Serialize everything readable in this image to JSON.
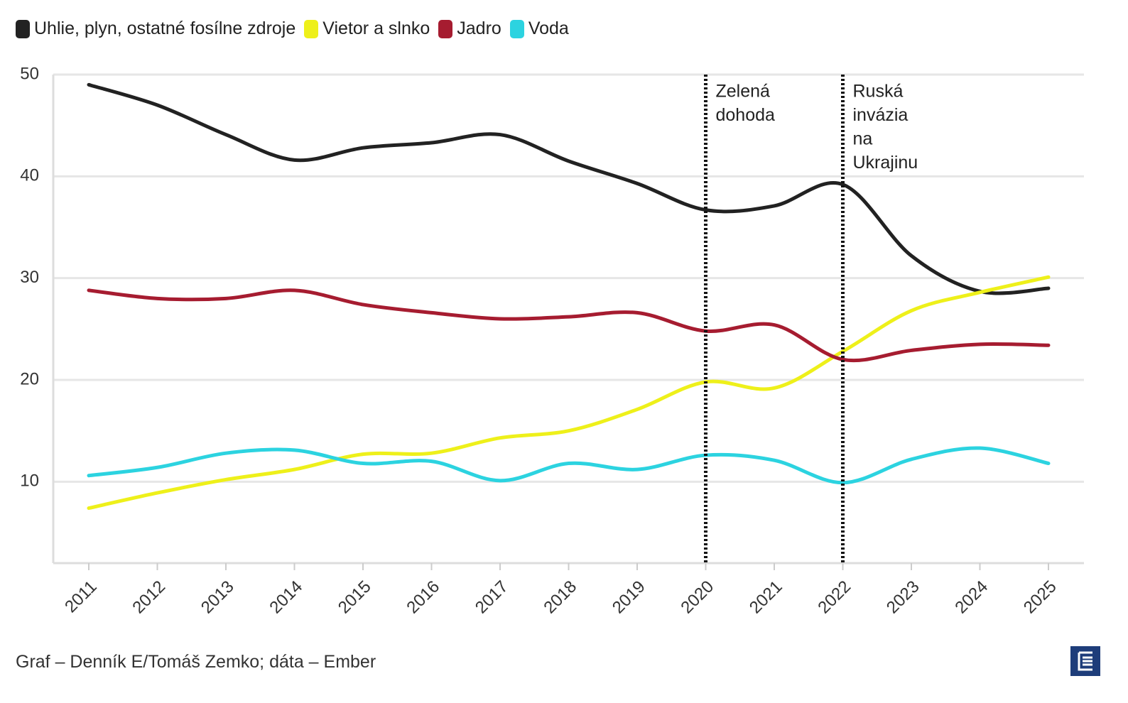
{
  "chart_data": {
    "type": "line",
    "x": [
      2011,
      2012,
      2013,
      2014,
      2015,
      2016,
      2017,
      2018,
      2019,
      2020,
      2021,
      2022,
      2023,
      2024,
      2025
    ],
    "xlim": [
      2011,
      2025
    ],
    "xticks": [
      2011,
      2012,
      2013,
      2014,
      2015,
      2016,
      2017,
      2018,
      2019,
      2020,
      2021,
      2022,
      2023,
      2024,
      2025
    ],
    "ylim": [
      2,
      50
    ],
    "yticks": [
      10,
      20,
      30,
      40,
      50
    ],
    "grid": true,
    "series": [
      {
        "name": "Uhlie, plyn, ostatné fosílne zdroje",
        "color": "#222222",
        "values": [
          49.0,
          47.0,
          44.1,
          41.6,
          42.8,
          43.3,
          44.1,
          41.5,
          39.3,
          36.7,
          37.1,
          39.2,
          32.2,
          28.7,
          29.0
        ]
      },
      {
        "name": "Vietor a slnko",
        "color": "#eef01a",
        "values": [
          7.4,
          8.9,
          10.2,
          11.2,
          12.7,
          12.8,
          14.3,
          15.0,
          17.1,
          19.8,
          19.2,
          22.8,
          26.8,
          28.6,
          30.1
        ]
      },
      {
        "name": "Jadro",
        "color": "#a61c30",
        "values": [
          28.8,
          28.0,
          28.0,
          28.8,
          27.4,
          26.6,
          26.0,
          26.2,
          26.6,
          24.8,
          25.4,
          22.0,
          22.9,
          23.5,
          23.4
        ]
      },
      {
        "name": "Voda",
        "color": "#2cd3e0",
        "values": [
          10.6,
          11.4,
          12.8,
          13.1,
          11.8,
          12.0,
          10.1,
          11.8,
          11.2,
          12.6,
          12.1,
          9.9,
          12.2,
          13.3,
          11.8
        ]
      }
    ],
    "annotations": [
      {
        "x": 2020,
        "lines": [
          "Zelená",
          "dohoda"
        ]
      },
      {
        "x": 2022,
        "lines": [
          "Ruská",
          "invázia",
          "na",
          "Ukrajinu"
        ]
      }
    ],
    "source": "Graf – Denník E/Tomáš Zemko; dáta – Ember"
  }
}
